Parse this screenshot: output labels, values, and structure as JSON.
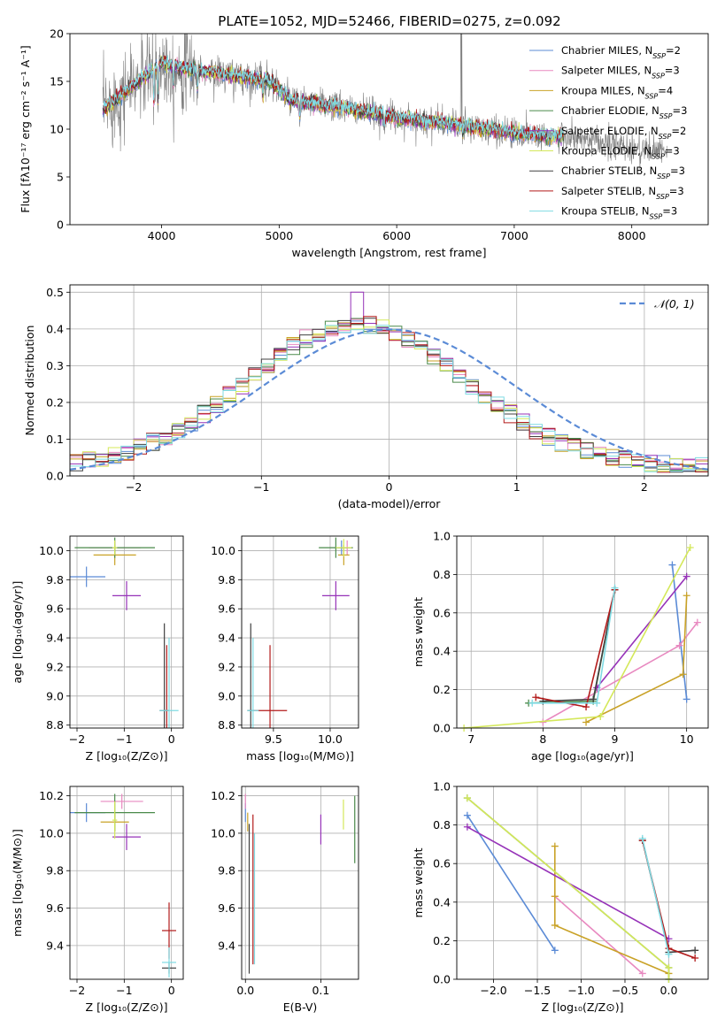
{
  "figure": {
    "title": "PLATE=1052, MJD=52466, FIBERID=0275, z=0.092"
  },
  "colors": {
    "data": "#808080",
    "grid": "#b0b0b0",
    "normal": "#5b8bd6"
  },
  "chart_data": [
    {
      "id": "spectrum",
      "type": "line",
      "title": "PLATE=1052, MJD=52466, FIBERID=0275, z=0.092",
      "xlabel": "wavelength [Angstrom, rest frame]",
      "ylabel": "Flux [fλ10⁻¹⁷ erg cm⁻² s⁻¹ A⁻¹]",
      "xlim": [
        3220,
        8650
      ],
      "ylim": [
        0,
        20
      ],
      "xticks": [
        4000,
        5000,
        6000,
        7000,
        8000
      ],
      "yticks": [
        0,
        5,
        10,
        15,
        20
      ],
      "grid": false,
      "legend_position": "top-right",
      "data_range": [
        3500,
        8300
      ],
      "model_range": [
        3500,
        7420
      ],
      "continuum": [
        [
          3500,
          12.0
        ],
        [
          3800,
          15.0
        ],
        [
          4000,
          17.0
        ],
        [
          4200,
          16.3
        ],
        [
          4600,
          15.6
        ],
        [
          4900,
          15.2
        ],
        [
          5100,
          13.0
        ],
        [
          5500,
          12.3
        ],
        [
          6000,
          11.2
        ],
        [
          6500,
          10.5
        ],
        [
          7000,
          9.6
        ],
        [
          7400,
          9.2
        ],
        [
          7800,
          8.4
        ],
        [
          8300,
          7.5
        ]
      ],
      "absorption_lines": [
        [
          3934,
          4.0
        ],
        [
          3968,
          4.0
        ],
        [
          4102,
          2.0
        ],
        [
          4304,
          2.0
        ],
        [
          4861,
          2.0
        ],
        [
          5175,
          1.5
        ],
        [
          5893,
          1.0
        ],
        [
          6563,
          1.0
        ]
      ],
      "series": [
        {
          "name": "Chabrier MILES, N",
          "sub": "SSP",
          "suffix": "=2",
          "color": "#5b8bd6"
        },
        {
          "name": "Salpeter MILES, N",
          "sub": "SSP",
          "suffix": "=3",
          "color": "#e889c0"
        },
        {
          "name": "Kroupa MILES, N",
          "sub": "SSP",
          "suffix": "=4",
          "color": "#c9a227"
        },
        {
          "name": "Chabrier ELODIE, N",
          "sub": "SSP",
          "suffix": "=3",
          "color": "#4a8a4a"
        },
        {
          "name": "Salpeter ELODIE, N",
          "sub": "SSP",
          "suffix": "=2",
          "color": "#9632b8"
        },
        {
          "name": "Kroupa ELODIE, N",
          "sub": "SSP",
          "suffix": "=3",
          "color": "#d4e85a"
        },
        {
          "name": "Chabrier STELIB, N",
          "sub": "SSP",
          "suffix": "=3",
          "color": "#404040"
        },
        {
          "name": "Salpeter STELIB, N",
          "sub": "SSP",
          "suffix": "=3",
          "color": "#b21a1a"
        },
        {
          "name": "Kroupa STELIB, N",
          "sub": "SSP",
          "suffix": "=3",
          "color": "#7fdbe3"
        }
      ]
    },
    {
      "id": "residuals",
      "type": "bar",
      "xlabel": "(data-model)/error",
      "ylabel": "Normed distribution",
      "xlim": [
        -2.5,
        2.5
      ],
      "ylim": [
        0,
        0.52
      ],
      "xticks": [
        -2,
        -1,
        0,
        1,
        2
      ],
      "yticks": [
        0.0,
        0.1,
        0.2,
        0.3,
        0.4,
        0.5
      ],
      "grid": true,
      "legend_position": "top-right",
      "legend_label": "𝒩(0, 1)",
      "bins": {
        "start": -2.5,
        "width": 0.1,
        "count": 50
      },
      "peak_bin": {
        "x": -0.25,
        "y": 0.5
      }
    },
    {
      "id": "age-vs-z",
      "type": "scatter",
      "xlabel": "Z [log₁₀(Z/Z⊙)]",
      "ylabel": "age [log₁₀(age/yr)]",
      "xlim": [
        -2.15,
        0.25
      ],
      "ylim": [
        8.78,
        10.1
      ],
      "xticks": [
        -2,
        -1,
        0
      ],
      "yticks": [
        8.8,
        9.0,
        9.2,
        9.4,
        9.6,
        9.8,
        10.0
      ],
      "grid": true,
      "points": [
        {
          "c": 0,
          "x": -1.8,
          "y": 9.82,
          "ex": 0.4,
          "ey": 0.07
        },
        {
          "c": 1,
          "x": -1.2,
          "y": 10.02,
          "ex": 0.55,
          "ey": 0.05
        },
        {
          "c": 2,
          "x": -1.2,
          "y": 9.97,
          "ex": 0.45,
          "ey": 0.07
        },
        {
          "c": 3,
          "x": -1.2,
          "y": 10.02,
          "ex": 0.85,
          "ey": 0.07
        },
        {
          "c": 4,
          "x": -0.95,
          "y": 9.69,
          "ex": 0.3,
          "ey": 0.1
        },
        {
          "c": 5,
          "x": -1.2,
          "y": 10.02,
          "ex": 0.05,
          "ey": 0.05
        },
        {
          "c": 6,
          "x": -0.15,
          "y": 8.9,
          "ex": 0.1,
          "ey": 0.6
        },
        {
          "c": 7,
          "x": -0.1,
          "y": 8.9,
          "ex": 0.05,
          "ey": 0.45
        },
        {
          "c": 8,
          "x": -0.05,
          "y": 8.9,
          "ex": 0.2,
          "ey": 0.5
        }
      ]
    },
    {
      "id": "age-vs-mass",
      "type": "scatter",
      "xlabel": "mass [log₁₀(M/M⊙)]",
      "ylabel": "",
      "xlim": [
        9.22,
        10.25
      ],
      "ylim": [
        8.78,
        10.1
      ],
      "xticks": [
        9.5,
        10.0
      ],
      "yticks": [
        8.8,
        9.0,
        9.2,
        9.4,
        9.6,
        9.8,
        10.0
      ],
      "grid": true,
      "points": [
        {
          "c": 0,
          "x": 10.1,
          "y": 10.02,
          "ex": 0.05,
          "ey": 0.05
        },
        {
          "c": 1,
          "x": 10.15,
          "y": 10.02,
          "ex": 0.05,
          "ey": 0.05
        },
        {
          "c": 2,
          "x": 10.12,
          "y": 9.97,
          "ex": 0.05,
          "ey": 0.07
        },
        {
          "c": 3,
          "x": 10.05,
          "y": 10.02,
          "ex": 0.15,
          "ey": 0.07
        },
        {
          "c": 4,
          "x": 10.05,
          "y": 9.69,
          "ex": 0.12,
          "ey": 0.1
        },
        {
          "c": 5,
          "x": 10.12,
          "y": 10.02,
          "ex": 0.07,
          "ey": 0.06
        },
        {
          "c": 6,
          "x": 9.3,
          "y": 8.9,
          "ex": 0.03,
          "ey": 0.6
        },
        {
          "c": 7,
          "x": 9.47,
          "y": 8.9,
          "ex": 0.15,
          "ey": 0.45
        },
        {
          "c": 8,
          "x": 9.32,
          "y": 8.9,
          "ex": 0.05,
          "ey": 0.5
        }
      ]
    },
    {
      "id": "weight-vs-age",
      "type": "line",
      "xlabel": "age [log₁₀(age/yr)]",
      "ylabel": "mass weight",
      "xlim": [
        6.8,
        10.3
      ],
      "ylim": [
        0.0,
        1.0
      ],
      "xticks": [
        7,
        8,
        9,
        10
      ],
      "yticks": [
        0.0,
        0.2,
        0.4,
        0.6,
        0.8,
        1.0
      ],
      "grid": true,
      "series_points": [
        {
          "c": 0,
          "x": [
            9.8,
            10.0
          ],
          "y": [
            0.85,
            0.15
          ]
        },
        {
          "c": 1,
          "x": [
            8.0,
            9.9,
            10.15
          ],
          "y": [
            0.03,
            0.43,
            0.55
          ]
        },
        {
          "c": 2,
          "x": [
            8.6,
            9.95,
            10.0
          ],
          "y": [
            0.03,
            0.28,
            0.69
          ]
        },
        {
          "c": 3,
          "x": [
            7.8,
            8.7,
            9.0
          ],
          "y": [
            0.13,
            0.14,
            0.72
          ]
        },
        {
          "c": 4,
          "x": [
            8.75,
            10.0
          ],
          "y": [
            0.21,
            0.79
          ]
        },
        {
          "c": 5,
          "x": [
            6.9,
            8.8,
            10.05
          ],
          "y": [
            0.0,
            0.06,
            0.94
          ]
        },
        {
          "c": 6,
          "x": [
            8.0,
            8.7,
            9.0
          ],
          "y": [
            0.14,
            0.15,
            0.72
          ]
        },
        {
          "c": 7,
          "x": [
            7.9,
            8.6,
            9.0
          ],
          "y": [
            0.16,
            0.11,
            0.72
          ]
        },
        {
          "c": 8,
          "x": [
            7.85,
            8.75,
            9.0
          ],
          "y": [
            0.13,
            0.13,
            0.73
          ]
        }
      ]
    },
    {
      "id": "mass-vs-z",
      "type": "scatter",
      "xlabel": "Z [log₁₀(Z/Z⊙)]",
      "ylabel": "mass [log₁₀(M/M⊙)]",
      "xlim": [
        -2.15,
        0.25
      ],
      "ylim": [
        9.22,
        10.25
      ],
      "xticks": [
        -2,
        -1,
        0
      ],
      "yticks": [
        9.4,
        9.6,
        9.8,
        10.0,
        10.2
      ],
      "grid": true,
      "points": [
        {
          "c": 0,
          "x": -1.8,
          "y": 10.11,
          "ex": 0.4,
          "ey": 0.05
        },
        {
          "c": 1,
          "x": -1.05,
          "y": 10.17,
          "ex": 0.45,
          "ey": 0.04
        },
        {
          "c": 2,
          "x": -1.2,
          "y": 10.06,
          "ex": 0.3,
          "ey": 0.05
        },
        {
          "c": 3,
          "x": -1.2,
          "y": 10.11,
          "ex": 0.85,
          "ey": 0.1
        },
        {
          "c": 4,
          "x": -0.95,
          "y": 9.98,
          "ex": 0.3,
          "ey": 0.07
        },
        {
          "c": 5,
          "x": -1.2,
          "y": 10.07,
          "ex": 0.05,
          "ey": 0.1
        },
        {
          "c": 6,
          "x": -0.05,
          "y": 9.28,
          "ex": 0.15,
          "ey": 0.03
        },
        {
          "c": 7,
          "x": -0.05,
          "y": 9.48,
          "ex": 0.15,
          "ey": 0.15
        },
        {
          "c": 8,
          "x": -0.05,
          "y": 9.31,
          "ex": 0.15,
          "ey": 0.08
        }
      ]
    },
    {
      "id": "mass-vs-ebv",
      "type": "scatter",
      "xlabel": "E(B-V)",
      "ylabel": "",
      "xlim": [
        -0.005,
        0.15
      ],
      "ylim": [
        9.22,
        10.25
      ],
      "xticks": [
        0.0,
        0.1
      ],
      "yticks": [
        9.4,
        9.6,
        9.8,
        10.0,
        10.2
      ],
      "grid": true,
      "points": [
        {
          "c": 0,
          "x": 0.0,
          "y": 10.11,
          "ex": 0,
          "ey": 0.05
        },
        {
          "c": 1,
          "x": 0.0,
          "y": 10.17,
          "ex": 0,
          "ey": 0.04
        },
        {
          "c": 2,
          "x": 0.003,
          "y": 10.06,
          "ex": 0,
          "ey": 0.05
        },
        {
          "c": 3,
          "x": 0.145,
          "y": 10.02,
          "ex": 0,
          "ey": 0.18
        },
        {
          "c": 4,
          "x": 0.1,
          "y": 10.02,
          "ex": 0,
          "ey": 0.08
        },
        {
          "c": 5,
          "x": 0.13,
          "y": 10.1,
          "ex": 0,
          "ey": 0.08
        },
        {
          "c": 6,
          "x": 0.005,
          "y": 9.65,
          "ex": 0,
          "ey": 0.4
        },
        {
          "c": 7,
          "x": 0.01,
          "y": 9.7,
          "ex": 0,
          "ey": 0.4
        },
        {
          "c": 8,
          "x": 0.012,
          "y": 9.65,
          "ex": 0,
          "ey": 0.35
        }
      ]
    },
    {
      "id": "weight-vs-z",
      "type": "line",
      "xlabel": "Z [log₁₀(Z/Z⊙)]",
      "ylabel": "mass weight",
      "xlim": [
        -2.42,
        0.45
      ],
      "ylim": [
        0.0,
        1.0
      ],
      "xticks": [
        -2.0,
        -1.5,
        -1.0,
        -0.5,
        0.0
      ],
      "yticks": [
        0.0,
        0.2,
        0.4,
        0.6,
        0.8,
        1.0
      ],
      "grid": true,
      "series_points": [
        {
          "c": 0,
          "x": [
            -2.3,
            -1.3
          ],
          "y": [
            0.85,
            0.15
          ]
        },
        {
          "c": 1,
          "x": [
            -1.3,
            -0.3
          ],
          "y": [
            0.43,
            0.03
          ]
        },
        {
          "c": 2,
          "x": [
            -1.3,
            -1.3,
            -1.3,
            0.0
          ],
          "y": [
            0.69,
            0.43,
            0.28,
            0.03
          ]
        },
        {
          "c": 3,
          "x": [
            -2.3,
            0.0,
            0.0
          ],
          "y": [
            0.94,
            0.06,
            0.0
          ]
        },
        {
          "c": 4,
          "x": [
            -2.3,
            0.0
          ],
          "y": [
            0.79,
            0.21
          ]
        },
        {
          "c": 5,
          "x": [
            -2.3,
            0.0,
            0.0
          ],
          "y": [
            0.94,
            0.06,
            0.0
          ]
        },
        {
          "c": 6,
          "x": [
            -0.3,
            0.0,
            0.3
          ],
          "y": [
            0.72,
            0.14,
            0.15
          ]
        },
        {
          "c": 7,
          "x": [
            -0.3,
            0.0,
            0.3
          ],
          "y": [
            0.72,
            0.16,
            0.11
          ]
        },
        {
          "c": 8,
          "x": [
            -0.3,
            0.0,
            0.0
          ],
          "y": [
            0.73,
            0.13,
            0.13
          ]
        }
      ]
    }
  ]
}
